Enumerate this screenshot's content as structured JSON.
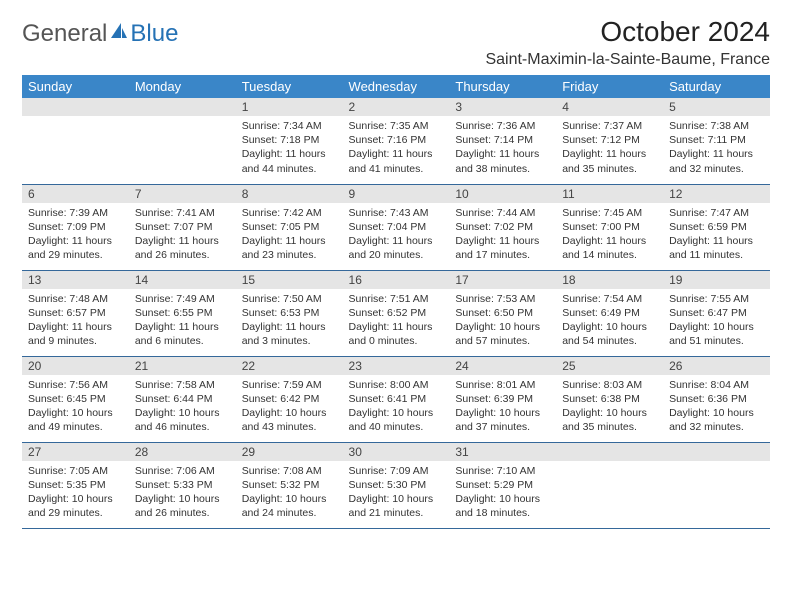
{
  "logo": {
    "general": "General",
    "blue": "Blue"
  },
  "title": "October 2024",
  "location": "Saint-Maximin-la-Sainte-Baume, France",
  "colors": {
    "header_bg": "#3a86c8",
    "header_text": "#ffffff",
    "daynum_bg": "#e5e5e5",
    "border": "#35689a",
    "logo_blue": "#2572b5",
    "logo_gray": "#555"
  },
  "day_headers": [
    "Sunday",
    "Monday",
    "Tuesday",
    "Wednesday",
    "Thursday",
    "Friday",
    "Saturday"
  ],
  "weeks": [
    [
      null,
      null,
      {
        "n": "1",
        "sunrise": "Sunrise: 7:34 AM",
        "sunset": "Sunset: 7:18 PM",
        "daylight": "Daylight: 11 hours and 44 minutes."
      },
      {
        "n": "2",
        "sunrise": "Sunrise: 7:35 AM",
        "sunset": "Sunset: 7:16 PM",
        "daylight": "Daylight: 11 hours and 41 minutes."
      },
      {
        "n": "3",
        "sunrise": "Sunrise: 7:36 AM",
        "sunset": "Sunset: 7:14 PM",
        "daylight": "Daylight: 11 hours and 38 minutes."
      },
      {
        "n": "4",
        "sunrise": "Sunrise: 7:37 AM",
        "sunset": "Sunset: 7:12 PM",
        "daylight": "Daylight: 11 hours and 35 minutes."
      },
      {
        "n": "5",
        "sunrise": "Sunrise: 7:38 AM",
        "sunset": "Sunset: 7:11 PM",
        "daylight": "Daylight: 11 hours and 32 minutes."
      }
    ],
    [
      {
        "n": "6",
        "sunrise": "Sunrise: 7:39 AM",
        "sunset": "Sunset: 7:09 PM",
        "daylight": "Daylight: 11 hours and 29 minutes."
      },
      {
        "n": "7",
        "sunrise": "Sunrise: 7:41 AM",
        "sunset": "Sunset: 7:07 PM",
        "daylight": "Daylight: 11 hours and 26 minutes."
      },
      {
        "n": "8",
        "sunrise": "Sunrise: 7:42 AM",
        "sunset": "Sunset: 7:05 PM",
        "daylight": "Daylight: 11 hours and 23 minutes."
      },
      {
        "n": "9",
        "sunrise": "Sunrise: 7:43 AM",
        "sunset": "Sunset: 7:04 PM",
        "daylight": "Daylight: 11 hours and 20 minutes."
      },
      {
        "n": "10",
        "sunrise": "Sunrise: 7:44 AM",
        "sunset": "Sunset: 7:02 PM",
        "daylight": "Daylight: 11 hours and 17 minutes."
      },
      {
        "n": "11",
        "sunrise": "Sunrise: 7:45 AM",
        "sunset": "Sunset: 7:00 PM",
        "daylight": "Daylight: 11 hours and 14 minutes."
      },
      {
        "n": "12",
        "sunrise": "Sunrise: 7:47 AM",
        "sunset": "Sunset: 6:59 PM",
        "daylight": "Daylight: 11 hours and 11 minutes."
      }
    ],
    [
      {
        "n": "13",
        "sunrise": "Sunrise: 7:48 AM",
        "sunset": "Sunset: 6:57 PM",
        "daylight": "Daylight: 11 hours and 9 minutes."
      },
      {
        "n": "14",
        "sunrise": "Sunrise: 7:49 AM",
        "sunset": "Sunset: 6:55 PM",
        "daylight": "Daylight: 11 hours and 6 minutes."
      },
      {
        "n": "15",
        "sunrise": "Sunrise: 7:50 AM",
        "sunset": "Sunset: 6:53 PM",
        "daylight": "Daylight: 11 hours and 3 minutes."
      },
      {
        "n": "16",
        "sunrise": "Sunrise: 7:51 AM",
        "sunset": "Sunset: 6:52 PM",
        "daylight": "Daylight: 11 hours and 0 minutes."
      },
      {
        "n": "17",
        "sunrise": "Sunrise: 7:53 AM",
        "sunset": "Sunset: 6:50 PM",
        "daylight": "Daylight: 10 hours and 57 minutes."
      },
      {
        "n": "18",
        "sunrise": "Sunrise: 7:54 AM",
        "sunset": "Sunset: 6:49 PM",
        "daylight": "Daylight: 10 hours and 54 minutes."
      },
      {
        "n": "19",
        "sunrise": "Sunrise: 7:55 AM",
        "sunset": "Sunset: 6:47 PM",
        "daylight": "Daylight: 10 hours and 51 minutes."
      }
    ],
    [
      {
        "n": "20",
        "sunrise": "Sunrise: 7:56 AM",
        "sunset": "Sunset: 6:45 PM",
        "daylight": "Daylight: 10 hours and 49 minutes."
      },
      {
        "n": "21",
        "sunrise": "Sunrise: 7:58 AM",
        "sunset": "Sunset: 6:44 PM",
        "daylight": "Daylight: 10 hours and 46 minutes."
      },
      {
        "n": "22",
        "sunrise": "Sunrise: 7:59 AM",
        "sunset": "Sunset: 6:42 PM",
        "daylight": "Daylight: 10 hours and 43 minutes."
      },
      {
        "n": "23",
        "sunrise": "Sunrise: 8:00 AM",
        "sunset": "Sunset: 6:41 PM",
        "daylight": "Daylight: 10 hours and 40 minutes."
      },
      {
        "n": "24",
        "sunrise": "Sunrise: 8:01 AM",
        "sunset": "Sunset: 6:39 PM",
        "daylight": "Daylight: 10 hours and 37 minutes."
      },
      {
        "n": "25",
        "sunrise": "Sunrise: 8:03 AM",
        "sunset": "Sunset: 6:38 PM",
        "daylight": "Daylight: 10 hours and 35 minutes."
      },
      {
        "n": "26",
        "sunrise": "Sunrise: 8:04 AM",
        "sunset": "Sunset: 6:36 PM",
        "daylight": "Daylight: 10 hours and 32 minutes."
      }
    ],
    [
      {
        "n": "27",
        "sunrise": "Sunrise: 7:05 AM",
        "sunset": "Sunset: 5:35 PM",
        "daylight": "Daylight: 10 hours and 29 minutes."
      },
      {
        "n": "28",
        "sunrise": "Sunrise: 7:06 AM",
        "sunset": "Sunset: 5:33 PM",
        "daylight": "Daylight: 10 hours and 26 minutes."
      },
      {
        "n": "29",
        "sunrise": "Sunrise: 7:08 AM",
        "sunset": "Sunset: 5:32 PM",
        "daylight": "Daylight: 10 hours and 24 minutes."
      },
      {
        "n": "30",
        "sunrise": "Sunrise: 7:09 AM",
        "sunset": "Sunset: 5:30 PM",
        "daylight": "Daylight: 10 hours and 21 minutes."
      },
      {
        "n": "31",
        "sunrise": "Sunrise: 7:10 AM",
        "sunset": "Sunset: 5:29 PM",
        "daylight": "Daylight: 10 hours and 18 minutes."
      },
      null,
      null
    ]
  ]
}
